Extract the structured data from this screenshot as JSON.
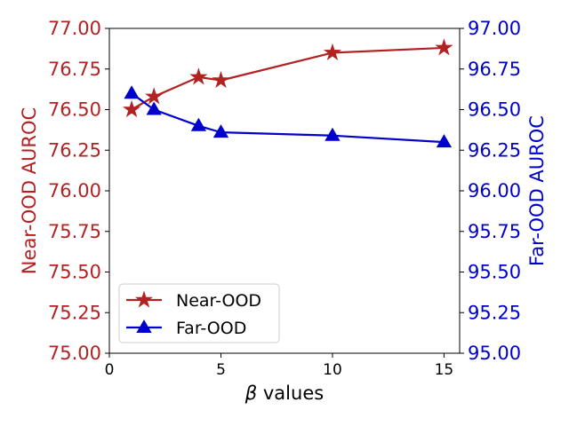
{
  "chart_data": {
    "type": "line",
    "xlabel_symbol": "β",
    "xlabel_text": " values",
    "ylabel_left": "Near-OOD AUROC",
    "ylabel_right": "Far-OOD AUROC",
    "xlim": [
      0,
      15.7
    ],
    "ylim_left": [
      75.0,
      77.0
    ],
    "ylim_right": [
      95.0,
      97.0
    ],
    "x_ticks": [
      0,
      5,
      10,
      15
    ],
    "x_tick_labels": [
      "0",
      "5",
      "10",
      "15"
    ],
    "y_left_ticks": [
      75.0,
      75.25,
      75.5,
      75.75,
      76.0,
      76.25,
      76.5,
      76.75,
      77.0
    ],
    "y_left_tick_labels": [
      "75.00",
      "75.25",
      "75.50",
      "75.75",
      "76.00",
      "76.25",
      "76.50",
      "76.75",
      "77.00"
    ],
    "y_right_ticks": [
      95.0,
      95.25,
      95.5,
      95.75,
      96.0,
      96.25,
      96.5,
      96.75,
      97.0
    ],
    "y_right_tick_labels": [
      "95.00",
      "95.25",
      "95.50",
      "95.75",
      "96.00",
      "96.25",
      "96.50",
      "96.75",
      "97.00"
    ],
    "grid": false,
    "legend_position": "lower-left",
    "series": [
      {
        "name": "Near-OOD",
        "axis": "left",
        "color": "#b22222",
        "marker": "star",
        "x": [
          1,
          2,
          4,
          5,
          10,
          15
        ],
        "y": [
          76.5,
          76.58,
          76.7,
          76.68,
          76.85,
          76.88
        ]
      },
      {
        "name": "Far-OOD",
        "axis": "right",
        "color": "#0000cd",
        "marker": "triangle",
        "x": [
          1,
          2,
          4,
          5,
          10,
          15
        ],
        "y": [
          96.6,
          96.5,
          96.4,
          96.36,
          96.34,
          96.3
        ]
      }
    ]
  }
}
